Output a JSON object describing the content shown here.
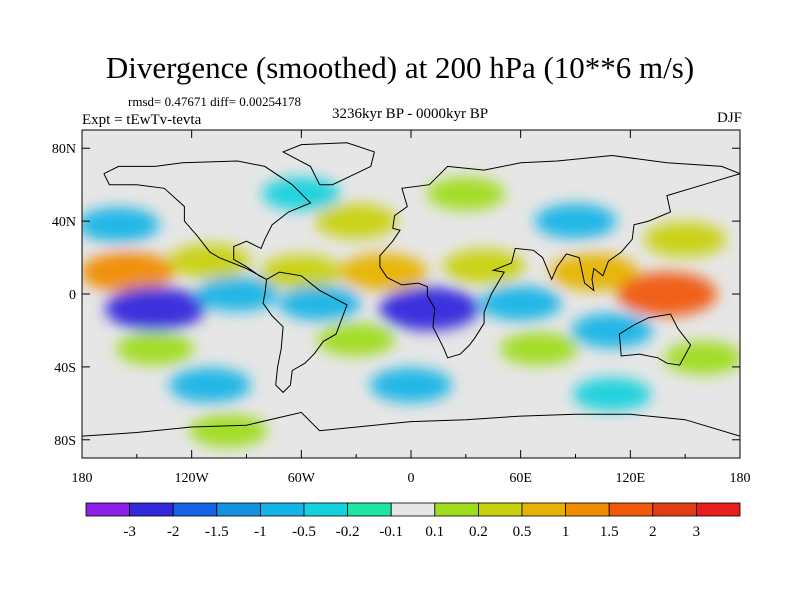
{
  "chart_data": {
    "type": "heatmap",
    "title": "Divergence (smoothed) at 200 hPa (10**6 m/s)",
    "stats": "rmsd= 0.47671 diff= 0.00254178",
    "experiment": "Expt = tEwTv-tevta",
    "period": "3236kyr BP - 0000kyr BP",
    "season": "DJF",
    "x_ticks": [
      "180",
      "120W",
      "60W",
      "0",
      "60E",
      "120E",
      "180"
    ],
    "x_tick_values": [
      -180,
      -120,
      -60,
      0,
      60,
      120,
      180
    ],
    "y_ticks": [
      "80N",
      "40N",
      "0",
      "40S",
      "80S"
    ],
    "y_tick_values": [
      80,
      40,
      0,
      -40,
      -80
    ],
    "xlim": [
      -180,
      180
    ],
    "ylim": [
      -90,
      90
    ],
    "colorbar_labels": [
      "-3",
      "-2",
      "-1.5",
      "-1",
      "-0.5",
      "-0.2",
      "-0.1",
      "0.1",
      "0.2",
      "0.5",
      "1",
      "1.5",
      "2",
      "3"
    ],
    "colorbar_colors": [
      "#8c1ee6",
      "#3228dc",
      "#1463e6",
      "#1491e1",
      "#14b4e6",
      "#14d2dc",
      "#1ee6a0",
      "#e6e6e6",
      "#a0dc1e",
      "#c8d20a",
      "#e6b400",
      "#f08c00",
      "#f05a0a",
      "#e13c14",
      "#e61e1e"
    ],
    "field_blobs": [
      {
        "lon": -155,
        "lat": 12,
        "value": 1.5
      },
      {
        "lon": -110,
        "lat": 18,
        "value": 0.5
      },
      {
        "lon": -60,
        "lat": 12,
        "value": 0.5
      },
      {
        "lon": -15,
        "lat": 12,
        "value": 1.0
      },
      {
        "lon": 40,
        "lat": 15,
        "value": 0.5
      },
      {
        "lon": 100,
        "lat": 12,
        "value": 1.0
      },
      {
        "lon": 140,
        "lat": 0,
        "value": 2.0
      },
      {
        "lon": -140,
        "lat": -8,
        "value": -2.0
      },
      {
        "lon": -95,
        "lat": 0,
        "value": -0.5
      },
      {
        "lon": -50,
        "lat": -5,
        "value": -0.5
      },
      {
        "lon": 10,
        "lat": -8,
        "value": -2.0
      },
      {
        "lon": 60,
        "lat": -5,
        "value": -0.5
      },
      {
        "lon": 110,
        "lat": -20,
        "value": -0.5
      },
      {
        "lon": -160,
        "lat": 38,
        "value": -0.5
      },
      {
        "lon": -30,
        "lat": 40,
        "value": 0.5
      },
      {
        "lon": 90,
        "lat": 40,
        "value": -0.5
      },
      {
        "lon": 150,
        "lat": 30,
        "value": 0.5
      },
      {
        "lon": -140,
        "lat": -30,
        "value": 0.2
      },
      {
        "lon": -30,
        "lat": -25,
        "value": 0.2
      },
      {
        "lon": 70,
        "lat": -30,
        "value": 0.2
      },
      {
        "lon": 160,
        "lat": -35,
        "value": 0.2
      },
      {
        "lon": -110,
        "lat": -50,
        "value": -0.5
      },
      {
        "lon": 0,
        "lat": -50,
        "value": -0.5
      },
      {
        "lon": 110,
        "lat": -55,
        "value": -0.2
      },
      {
        "lon": -60,
        "lat": 55,
        "value": -0.2
      },
      {
        "lon": 30,
        "lat": 55,
        "value": 0.2
      },
      {
        "lon": -100,
        "lat": -75,
        "value": 0.2
      }
    ]
  }
}
